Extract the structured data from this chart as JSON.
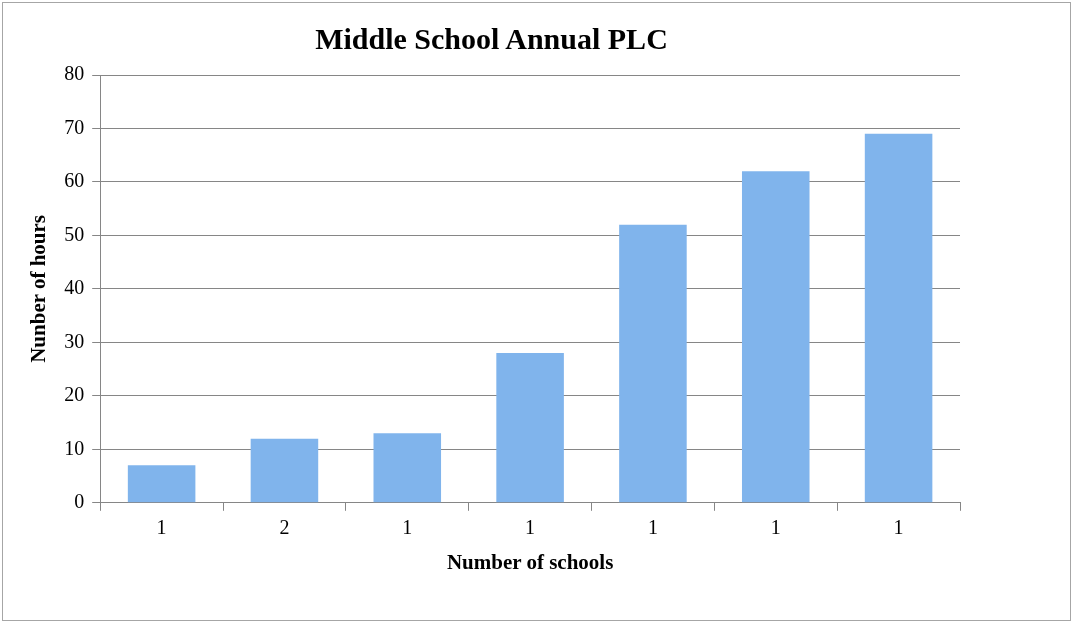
{
  "chart_data": {
    "type": "bar",
    "title": "Middle School Annual PLC",
    "xlabel": "Number of schools",
    "ylabel": "Nunber of hours",
    "categories": [
      "1",
      "2",
      "1",
      "1",
      "1",
      "1",
      "1"
    ],
    "values": [
      7,
      12,
      13,
      28,
      52,
      62,
      69
    ],
    "color": "#80b4ec",
    "ylim": [
      0,
      80
    ],
    "yticks": [
      0,
      10,
      20,
      30,
      40,
      50,
      60,
      70,
      80
    ],
    "grid": "y",
    "legend": false
  }
}
